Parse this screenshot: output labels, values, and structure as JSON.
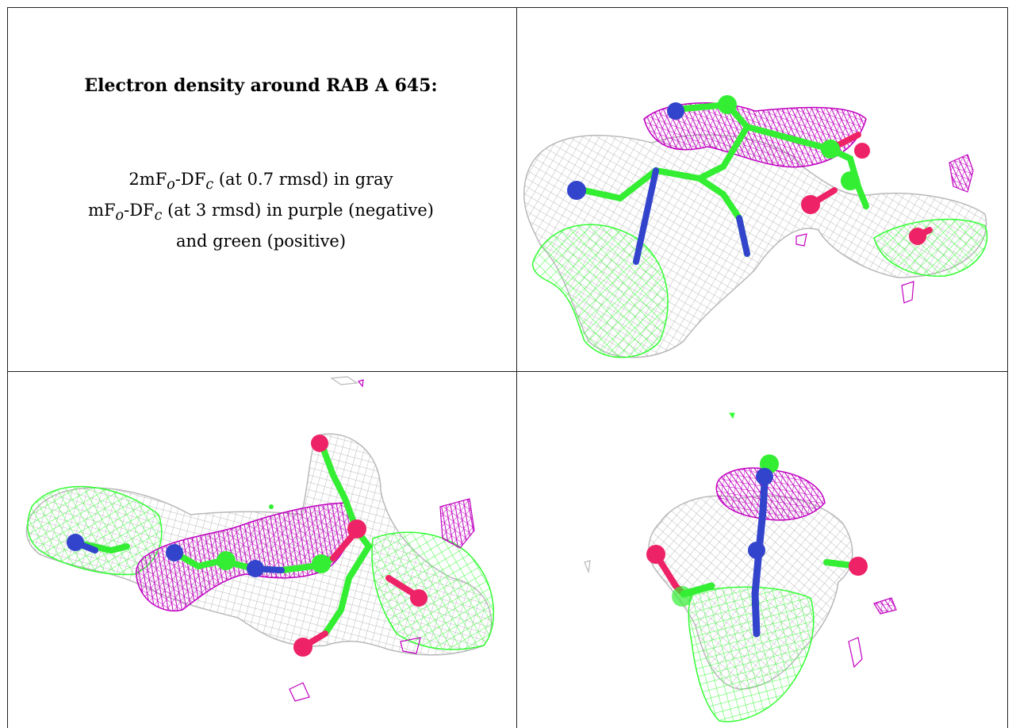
{
  "caption": {
    "title": "Electron density around RAB A 645:",
    "line1": {
      "part1": "2mF",
      "sub_o": "o",
      "part2": "-DF",
      "sub_c": "c",
      "tail": " (at 0.7 rmsd) in gray"
    },
    "line2": {
      "part1": "mF",
      "sub_o": "o",
      "part2": "-DF",
      "sub_c": "c",
      "tail": " (at 3 rmsd) in purple (negative)"
    },
    "line3": "and green (positive)"
  },
  "colors": {
    "gray_mesh": "#b9b9b9",
    "purple_mesh": "#c000c0",
    "green_mesh": "#33ff33",
    "carbon": "#33ee33",
    "nitrogen": "#3344cc",
    "oxygen": "#ee2266",
    "border": "#222222"
  },
  "panels": [
    {
      "name": "view-top-right"
    },
    {
      "name": "view-bottom-left"
    },
    {
      "name": "view-bottom-right"
    }
  ]
}
